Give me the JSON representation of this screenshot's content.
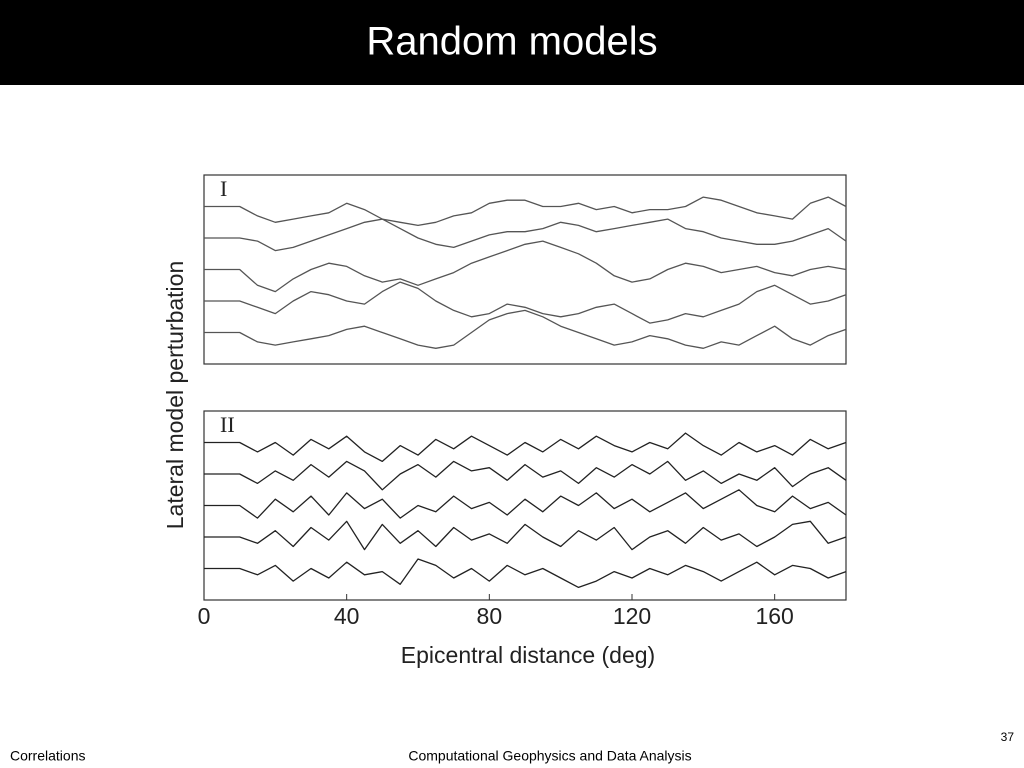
{
  "title": "Random models",
  "footer": {
    "left": "Correlations",
    "center": "Computational Geophysics and Data Analysis",
    "page": "37"
  },
  "chart_data": [
    {
      "type": "line",
      "label": "I",
      "ylabel": "Lateral model perturbation",
      "color": "#555555",
      "xlim": [
        0,
        180
      ],
      "ylim": [
        0,
        6
      ],
      "x": [
        0,
        5,
        10,
        15,
        20,
        25,
        30,
        35,
        40,
        45,
        50,
        55,
        60,
        65,
        70,
        75,
        80,
        85,
        90,
        95,
        100,
        105,
        110,
        115,
        120,
        125,
        130,
        135,
        140,
        145,
        150,
        155,
        160,
        165,
        170,
        175,
        180
      ],
      "series": [
        {
          "values": [
            5,
            5,
            5,
            4.7,
            4.5,
            4.6,
            4.7,
            4.8,
            5.1,
            4.9,
            4.6,
            4.5,
            4.4,
            4.5,
            4.7,
            4.8,
            5.1,
            5.2,
            5.2,
            5.0,
            5.0,
            5.1,
            4.9,
            5.0,
            4.8,
            4.9,
            4.9,
            5.0,
            5.3,
            5.2,
            5.0,
            4.8,
            4.7,
            4.6,
            5.1,
            5.3,
            5.0
          ]
        },
        {
          "values": [
            4,
            4,
            4,
            3.9,
            3.6,
            3.7,
            3.9,
            4.1,
            4.3,
            4.5,
            4.6,
            4.3,
            4.0,
            3.8,
            3.7,
            3.9,
            4.1,
            4.2,
            4.2,
            4.3,
            4.5,
            4.4,
            4.2,
            4.3,
            4.4,
            4.5,
            4.6,
            4.3,
            4.2,
            4.0,
            3.9,
            3.8,
            3.8,
            3.9,
            4.1,
            4.3,
            3.9
          ]
        },
        {
          "values": [
            3,
            3,
            3,
            2.5,
            2.3,
            2.7,
            3.0,
            3.2,
            3.1,
            2.8,
            2.6,
            2.7,
            2.5,
            2.7,
            2.9,
            3.2,
            3.4,
            3.6,
            3.8,
            3.9,
            3.7,
            3.5,
            3.2,
            2.8,
            2.6,
            2.7,
            3.0,
            3.2,
            3.1,
            2.9,
            3.0,
            3.1,
            2.9,
            2.8,
            3.0,
            3.1,
            3.0
          ]
        },
        {
          "values": [
            2,
            2,
            2,
            1.8,
            1.6,
            2.0,
            2.3,
            2.2,
            2.0,
            1.9,
            2.3,
            2.6,
            2.4,
            2.0,
            1.7,
            1.5,
            1.6,
            1.9,
            1.8,
            1.6,
            1.5,
            1.6,
            1.8,
            1.9,
            1.6,
            1.3,
            1.4,
            1.6,
            1.5,
            1.7,
            1.9,
            2.3,
            2.5,
            2.2,
            1.9,
            2.0,
            2.2
          ]
        },
        {
          "values": [
            1,
            1,
            1,
            0.7,
            0.6,
            0.7,
            0.8,
            0.9,
            1.1,
            1.2,
            1.0,
            0.8,
            0.6,
            0.5,
            0.6,
            1.0,
            1.4,
            1.6,
            1.7,
            1.5,
            1.2,
            1.0,
            0.8,
            0.6,
            0.7,
            0.9,
            0.8,
            0.6,
            0.5,
            0.7,
            0.6,
            0.9,
            1.2,
            0.8,
            0.6,
            0.9,
            1.1
          ]
        }
      ]
    },
    {
      "type": "line",
      "label": "II",
      "xlabel": "Epicentral distance (deg)",
      "color": "#222222",
      "xlim": [
        0,
        180
      ],
      "ylim": [
        0,
        6
      ],
      "xticks": [
        0,
        40,
        80,
        120,
        160
      ],
      "x": [
        0,
        5,
        10,
        15,
        20,
        25,
        30,
        35,
        40,
        45,
        50,
        55,
        60,
        65,
        70,
        75,
        80,
        85,
        90,
        95,
        100,
        105,
        110,
        115,
        120,
        125,
        130,
        135,
        140,
        145,
        150,
        155,
        160,
        165,
        170,
        175,
        180
      ],
      "series": [
        {
          "values": [
            5,
            5,
            5,
            4.7,
            5.0,
            4.6,
            5.1,
            4.8,
            5.2,
            4.7,
            4.4,
            4.9,
            4.6,
            5.1,
            4.8,
            5.2,
            4.9,
            4.6,
            5.0,
            4.7,
            5.1,
            4.8,
            5.2,
            4.9,
            4.7,
            5.0,
            4.8,
            5.3,
            4.9,
            4.6,
            5.0,
            4.7,
            4.9,
            4.6,
            5.1,
            4.8,
            5.0
          ]
        },
        {
          "values": [
            4,
            4,
            4,
            3.7,
            4.1,
            3.8,
            4.3,
            3.9,
            4.4,
            4.1,
            3.5,
            4.0,
            4.3,
            3.9,
            4.4,
            4.1,
            4.2,
            3.8,
            4.3,
            3.9,
            4.1,
            3.7,
            4.2,
            3.9,
            4.3,
            4.0,
            4.4,
            3.8,
            4.1,
            3.7,
            4.0,
            3.8,
            4.2,
            3.6,
            4.0,
            4.2,
            3.8
          ]
        },
        {
          "values": [
            3,
            3,
            3,
            2.6,
            3.2,
            2.8,
            3.3,
            2.7,
            3.4,
            2.9,
            3.2,
            2.6,
            3.0,
            2.8,
            3.3,
            2.9,
            3.1,
            2.7,
            3.2,
            2.8,
            3.3,
            3.0,
            3.4,
            2.9,
            3.2,
            2.8,
            3.1,
            3.4,
            2.9,
            3.2,
            3.5,
            3.0,
            2.8,
            3.3,
            2.9,
            3.1,
            2.7
          ]
        },
        {
          "values": [
            2,
            2,
            2,
            1.8,
            2.2,
            1.7,
            2.3,
            1.9,
            2.5,
            1.6,
            2.4,
            1.8,
            2.2,
            1.7,
            2.3,
            1.9,
            2.1,
            1.8,
            2.4,
            2.0,
            1.7,
            2.2,
            1.9,
            2.3,
            1.6,
            2.0,
            2.2,
            1.8,
            2.3,
            1.9,
            2.1,
            1.7,
            2.0,
            2.4,
            2.5,
            1.8,
            2.0
          ]
        },
        {
          "values": [
            1,
            1,
            1,
            0.8,
            1.1,
            0.6,
            1.0,
            0.7,
            1.2,
            0.8,
            0.9,
            0.5,
            1.3,
            1.1,
            0.7,
            1.0,
            0.6,
            1.1,
            0.8,
            1.0,
            0.7,
            0.4,
            0.6,
            0.9,
            0.7,
            1.0,
            0.8,
            1.1,
            0.9,
            0.6,
            0.9,
            1.2,
            0.8,
            1.1,
            1.0,
            0.7,
            0.9
          ]
        }
      ]
    }
  ]
}
